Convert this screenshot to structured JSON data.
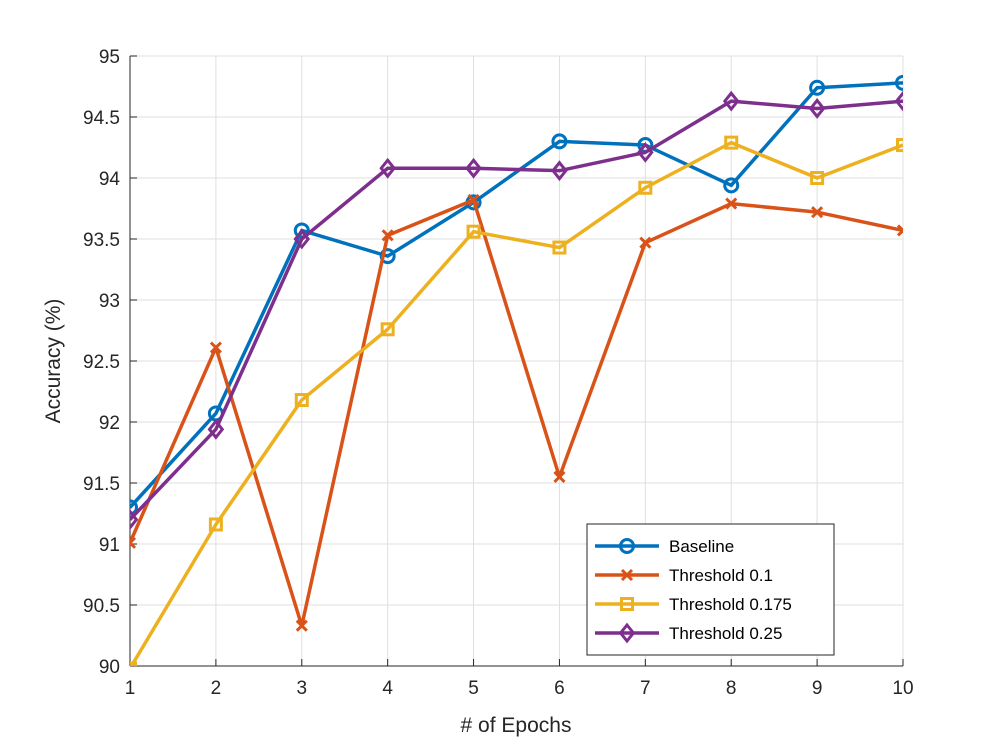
{
  "chart_data": {
    "type": "line",
    "title": "",
    "xlabel": "# of Epochs",
    "ylabel": "Accuracy (%)",
    "x": [
      1,
      2,
      3,
      4,
      5,
      6,
      7,
      8,
      9,
      10
    ],
    "xlim": [
      1,
      10
    ],
    "ylim": [
      90,
      95
    ],
    "xticks": [
      1,
      2,
      3,
      4,
      5,
      6,
      7,
      8,
      9,
      10
    ],
    "yticks": [
      90,
      90.5,
      91,
      91.5,
      92,
      92.5,
      93,
      93.5,
      94,
      94.5,
      95
    ],
    "xtick_labels": [
      "1",
      "2",
      "3",
      "4",
      "5",
      "6",
      "7",
      "8",
      "9",
      "10"
    ],
    "ytick_labels": [
      "90",
      "90.5",
      "91",
      "91.5",
      "92",
      "92.5",
      "93",
      "93.5",
      "94",
      "94.5",
      "95"
    ],
    "grid": true,
    "legend_position": "bottom-right",
    "series": [
      {
        "name": "Baseline",
        "color": "#0072BD",
        "marker": "circle",
        "values": [
          91.3,
          92.07,
          93.57,
          93.36,
          93.8,
          94.3,
          94.27,
          93.94,
          94.74,
          94.78
        ]
      },
      {
        "name": "Threshold 0.1",
        "color": "#D95319",
        "marker": "x",
        "values": [
          91.01,
          92.61,
          90.33,
          93.53,
          93.82,
          91.55,
          93.47,
          93.79,
          93.72,
          93.57
        ]
      },
      {
        "name": "Threshold 0.175",
        "color": "#EDB120",
        "marker": "square",
        "values": [
          89.98,
          91.16,
          92.18,
          92.76,
          93.56,
          93.43,
          93.92,
          94.29,
          94.0,
          94.27
        ]
      },
      {
        "name": "Threshold 0.25",
        "color": "#7E2F8E",
        "marker": "diamond",
        "values": [
          91.2,
          91.94,
          93.5,
          94.08,
          94.08,
          94.06,
          94.21,
          94.63,
          94.57,
          94.63
        ]
      }
    ]
  }
}
